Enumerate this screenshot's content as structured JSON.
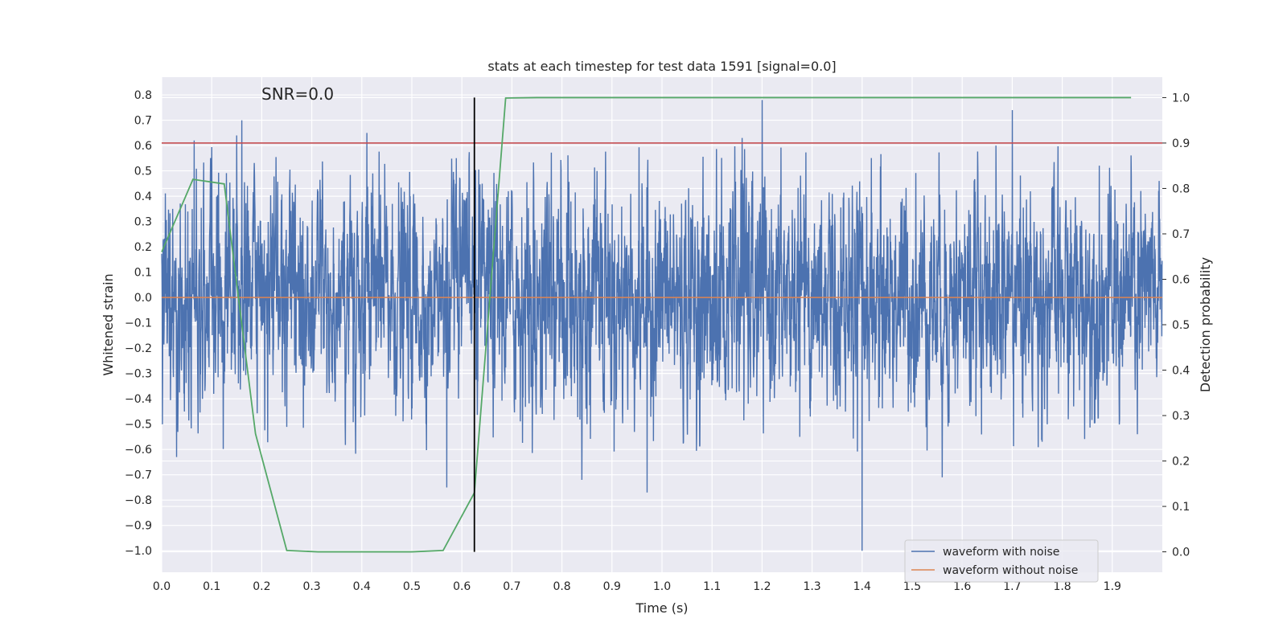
{
  "chart_data": {
    "type": "line",
    "title": "stats at each timestep for test data 1591 [signal=0.0]",
    "xlabel": "Time (s)",
    "ylabel": "Whitened strain",
    "y2label": "Detection probability",
    "annotation": "SNR=0.0",
    "xlim": [
      0.0,
      2.0
    ],
    "ylim": [
      -1.085,
      0.87
    ],
    "y2lim": [
      -0.045,
      1.045
    ],
    "xticks": [
      0.0,
      0.1,
      0.2,
      0.3,
      0.4,
      0.5,
      0.6,
      0.7,
      0.8,
      0.9,
      1.0,
      1.1,
      1.2,
      1.3,
      1.4,
      1.5,
      1.6,
      1.7,
      1.8,
      1.9
    ],
    "yticks": [
      0.8,
      0.7,
      0.6,
      0.5,
      0.4,
      0.3,
      0.2,
      0.1,
      0.0,
      -0.1,
      -0.2,
      -0.3,
      -0.4,
      -0.5,
      -0.6,
      -0.7,
      -0.8,
      -0.9,
      -1.0
    ],
    "y2ticks": [
      1.0,
      0.9,
      0.8,
      0.7,
      0.6,
      0.5,
      0.4,
      0.3,
      0.2,
      0.1,
      0.0
    ],
    "grid": true,
    "legend_position": "lower-right",
    "series": [
      {
        "name": "waveform with noise",
        "axis": "left",
        "color": "#4c72b0",
        "sample_rate": 2048,
        "noise_std": 0.19,
        "peaks": [
          [
            0.03,
            -0.63
          ],
          [
            0.065,
            0.62
          ],
          [
            0.16,
            0.7
          ],
          [
            0.15,
            0.64
          ],
          [
            0.41,
            0.65
          ],
          [
            0.57,
            -0.75
          ],
          [
            1.2,
            0.78
          ],
          [
            1.4,
            -1.0
          ],
          [
            1.7,
            0.74
          ],
          [
            0.97,
            -0.77
          ],
          [
            1.56,
            -0.71
          ],
          [
            1.16,
            0.63
          ],
          [
            1.95,
            -0.54
          ],
          [
            0.84,
            -0.72
          ]
        ]
      },
      {
        "name": "waveform without noise",
        "axis": "left",
        "color": "#dd8452",
        "x": [
          0.0,
          2.0
        ],
        "y": [
          0.0,
          0.0
        ]
      },
      {
        "name": "",
        "axis": "right",
        "color": "#55a868",
        "x": [
          0.0,
          0.0625,
          0.125,
          0.1875,
          0.25,
          0.3125,
          0.375,
          0.4375,
          0.5,
          0.5625,
          0.625,
          0.6875,
          0.75,
          0.8125,
          0.875,
          0.9375,
          1.0,
          1.0625,
          1.125,
          1.1875,
          1.25,
          1.3125,
          1.375,
          1.4375,
          1.5,
          1.5625,
          1.625,
          1.6875,
          1.75,
          1.8125,
          1.875,
          1.9375
        ],
        "y": [
          0.66,
          0.82,
          0.81,
          0.26,
          0.003,
          0.0,
          0.0,
          0.0,
          0.0,
          0.003,
          0.13,
          0.999,
          1.0,
          1.0,
          1.0,
          1.0,
          1.0,
          1.0,
          1.0,
          1.0,
          1.0,
          1.0,
          1.0,
          1.0,
          1.0,
          1.0,
          1.0,
          1.0,
          1.0,
          1.0,
          1.0,
          1.0
        ]
      }
    ],
    "threshold": {
      "value": 0.9,
      "axis": "right",
      "color": "#c44e52"
    },
    "marker_time": {
      "value": 0.625,
      "color": "#000000"
    }
  }
}
